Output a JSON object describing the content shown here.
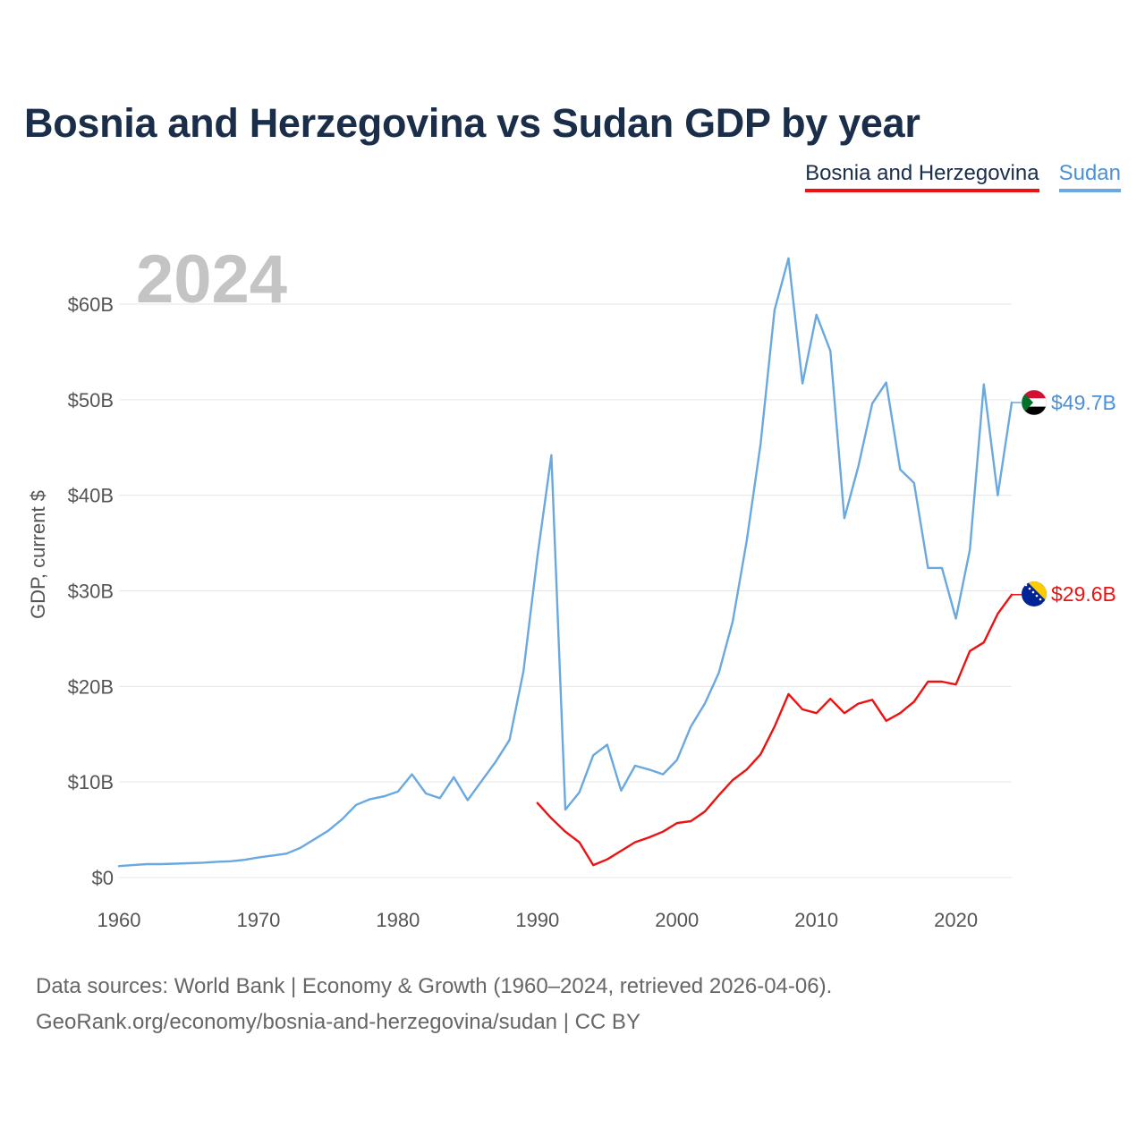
{
  "title": "Bosnia and Herzegovina vs Sudan GDP by year",
  "legend": {
    "bosnia": "Bosnia and Herzegovina",
    "sudan": "Sudan"
  },
  "footer": {
    "line1": "Data sources: World Bank | Economy & Growth (1960–2024, retrieved 2026-04-06).",
    "line2": "GeoRank.org/economy/bosnia-and-herzegovina/sudan | CC BY"
  },
  "colors": {
    "bosnia": "#ee1111",
    "sudan": "#6aa8e0",
    "sudan_text": "#4a90d9",
    "grid": "#e6e6e6",
    "title": "#1a2e4a"
  },
  "chart_data": {
    "type": "line",
    "title": "Bosnia and Herzegovina vs Sudan GDP by year",
    "watermark_year": "2024",
    "xlabel": "",
    "ylabel": "GDP, current $",
    "xlim": [
      1960,
      2024
    ],
    "ylim": [
      0,
      60
    ],
    "x_ticks": [
      1960,
      1970,
      1980,
      1990,
      2000,
      2010,
      2020
    ],
    "x_tick_labels": [
      "1960",
      "1970",
      "1980",
      "1990",
      "2000",
      "2010",
      "2020"
    ],
    "y_ticks": [
      0,
      10,
      20,
      30,
      40,
      50,
      60
    ],
    "y_tick_labels": [
      "$0",
      "$10B",
      "$20B",
      "$30B",
      "$40B",
      "$50B",
      "$60B"
    ],
    "grid": true,
    "legend_position": "top-right",
    "series": [
      {
        "name": "Sudan",
        "key": "sudan",
        "end_label": "$49.7B",
        "x": [
          1960,
          1961,
          1962,
          1963,
          1964,
          1965,
          1966,
          1967,
          1968,
          1969,
          1970,
          1971,
          1972,
          1973,
          1974,
          1975,
          1976,
          1977,
          1978,
          1979,
          1980,
          1981,
          1982,
          1983,
          1984,
          1985,
          1986,
          1987,
          1988,
          1989,
          1990,
          1991,
          1992,
          1993,
          1994,
          1995,
          1996,
          1997,
          1998,
          1999,
          2000,
          2001,
          2002,
          2003,
          2004,
          2005,
          2006,
          2007,
          2008,
          2009,
          2010,
          2011,
          2012,
          2013,
          2014,
          2015,
          2016,
          2017,
          2018,
          2019,
          2020,
          2021,
          2022,
          2023,
          2024
        ],
        "values": [
          1.2,
          1.3,
          1.4,
          1.4,
          1.45,
          1.5,
          1.55,
          1.65,
          1.7,
          1.85,
          2.1,
          2.3,
          2.5,
          3.1,
          4.0,
          4.9,
          6.1,
          7.6,
          8.2,
          8.5,
          9.0,
          10.8,
          8.8,
          8.3,
          10.5,
          8.1,
          10.1,
          12.1,
          14.4,
          21.6,
          33.6,
          44.2,
          7.1,
          8.9,
          12.8,
          13.9,
          9.1,
          11.7,
          11.3,
          10.8,
          12.3,
          15.8,
          18.2,
          21.4,
          26.8,
          35.2,
          45.4,
          59.4,
          64.8,
          51.7,
          58.9,
          55.1,
          37.6,
          43.0,
          49.6,
          51.8,
          42.7,
          41.3,
          32.4,
          32.4,
          27.1,
          34.3,
          51.6,
          40.0,
          49.7
        ]
      },
      {
        "name": "Bosnia and Herzegovina",
        "key": "bosnia",
        "end_label": "$29.6B",
        "x": [
          1990,
          1991,
          1992,
          1993,
          1994,
          1995,
          1996,
          1997,
          1998,
          1999,
          2000,
          2001,
          2002,
          2003,
          2004,
          2005,
          2006,
          2007,
          2008,
          2009,
          2010,
          2011,
          2012,
          2013,
          2014,
          2015,
          2016,
          2017,
          2018,
          2019,
          2020,
          2021,
          2022,
          2023,
          2024
        ],
        "values": [
          7.8,
          6.2,
          4.8,
          3.7,
          1.3,
          1.9,
          2.8,
          3.7,
          4.2,
          4.8,
          5.7,
          5.9,
          6.9,
          8.6,
          10.2,
          11.3,
          12.9,
          15.8,
          19.2,
          17.6,
          17.2,
          18.7,
          17.2,
          18.2,
          18.6,
          16.4,
          17.2,
          18.4,
          20.5,
          20.5,
          20.2,
          23.7,
          24.6,
          27.6,
          29.6
        ]
      }
    ]
  }
}
